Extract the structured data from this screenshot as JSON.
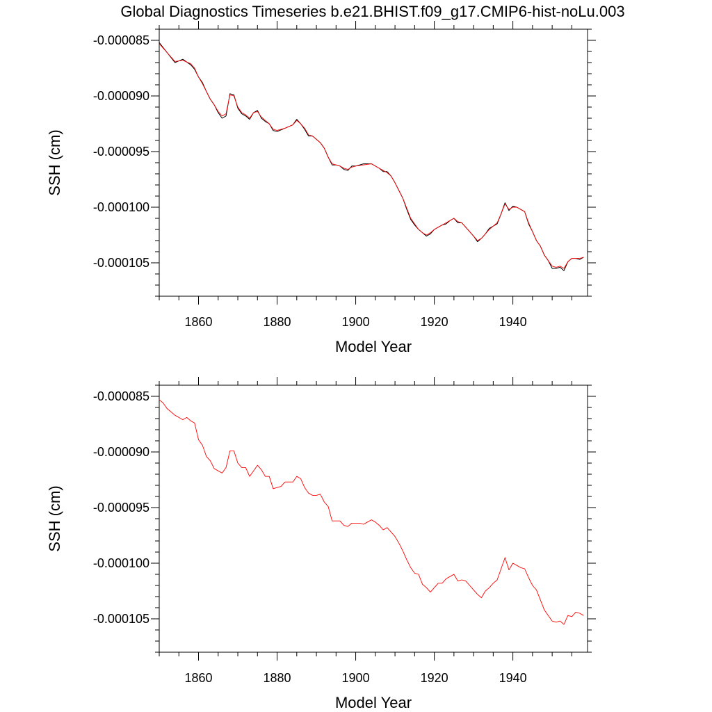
{
  "title": "Global Diagnostics Timeseries b.e21.BHIST.f09_g17.CMIP6-hist-noLu.003",
  "colors": {
    "monthly": "#000000",
    "annual": "#ff0000",
    "axes": "#000000",
    "background": "#ffffff"
  },
  "chart_data": [
    {
      "type": "line",
      "xlabel": "Model Year",
      "ylabel": "SSH (cm)",
      "xlim": [
        1850,
        1959
      ],
      "ylim": [
        -0.000108,
        -8.4e-05
      ],
      "xticks": [
        1860,
        1880,
        1900,
        1920,
        1940
      ],
      "xtick_labels": [
        "1860",
        "1880",
        "1900",
        "1920",
        "1940"
      ],
      "yticks": [
        -8.5e-05,
        -9e-05,
        -9.5e-05,
        -0.0001,
        -0.000105
      ],
      "ytick_labels": [
        "-0.000085",
        "-0.000090",
        "-0.000095",
        "-0.000100",
        "-0.000105"
      ],
      "grid": false,
      "series": [
        {
          "name": "",
          "style": "monthly",
          "color": "#000000",
          "x": [
            1850,
            1852,
            1854,
            1856,
            1858,
            1859,
            1860,
            1861,
            1862,
            1863,
            1864,
            1865,
            1866,
            1867,
            1868,
            1869,
            1870,
            1871,
            1872,
            1873,
            1874,
            1875,
            1876,
            1877,
            1878,
            1879,
            1880,
            1882,
            1884,
            1885,
            1886,
            1887,
            1888,
            1889,
            1890,
            1891,
            1892,
            1893,
            1894,
            1895,
            1896,
            1897,
            1898,
            1899,
            1900,
            1902,
            1904,
            1906,
            1907,
            1908,
            1909,
            1910,
            1911,
            1912,
            1913,
            1914,
            1915,
            1916,
            1917,
            1918,
            1919,
            1920,
            1921,
            1922,
            1923,
            1924,
            1925,
            1926,
            1927,
            1928,
            1929,
            1930,
            1931,
            1932,
            1933,
            1934,
            1935,
            1936,
            1937,
            1938,
            1939,
            1940,
            1941,
            1942,
            1943,
            1944,
            1945,
            1946,
            1947,
            1948,
            1949,
            1950,
            1951,
            1952,
            1953,
            1954,
            1955,
            1956,
            1957,
            1958
          ],
          "y": [
            -8.52e-05,
            -8.61e-05,
            -8.7e-05,
            -8.67e-05,
            -8.72e-05,
            -8.76e-05,
            -8.83e-05,
            -8.88e-05,
            -8.96e-05,
            -9.03e-05,
            -9.08e-05,
            -9.15e-05,
            -9.2e-05,
            -9.18e-05,
            -8.98e-05,
            -8.99e-05,
            -9.11e-05,
            -9.16e-05,
            -9.18e-05,
            -9.21e-05,
            -9.15e-05,
            -9.13e-05,
            -9.2e-05,
            -9.23e-05,
            -9.25e-05,
            -9.31e-05,
            -9.32e-05,
            -9.29e-05,
            -9.26e-05,
            -9.21e-05,
            -9.25e-05,
            -9.3e-05,
            -9.36e-05,
            -9.36e-05,
            -9.39e-05,
            -9.42e-05,
            -9.47e-05,
            -9.55e-05,
            -9.62e-05,
            -9.62e-05,
            -9.63e-05,
            -9.66e-05,
            -9.67e-05,
            -9.63e-05,
            -9.63e-05,
            -9.61e-05,
            -9.61e-05,
            -9.65e-05,
            -9.68e-05,
            -9.68e-05,
            -9.72e-05,
            -9.78e-05,
            -9.85e-05,
            -9.92e-05,
            -0.0001002,
            -0.0001011,
            -0.0001016,
            -0.000102,
            -0.0001023,
            -0.0001026,
            -0.0001024,
            -0.000102,
            -0.0001018,
            -0.0001016,
            -0.0001015,
            -0.0001012,
            -0.000101,
            -0.0001014,
            -0.0001014,
            -0.0001018,
            -0.0001022,
            -0.0001026,
            -0.0001031,
            -0.0001028,
            -0.0001024,
            -0.0001019,
            -0.0001017,
            -0.0001015,
            -0.0001006,
            -9.96e-05,
            -0.0001003,
            -9.99e-05,
            -0.0001,
            -0.0001002,
            -0.0001004,
            -0.0001015,
            -0.0001022,
            -0.000103,
            -0.0001035,
            -0.0001043,
            -0.0001048,
            -0.0001055,
            -0.0001055,
            -0.0001054,
            -0.0001057,
            -0.0001049,
            -0.0001046,
            -0.0001046,
            -0.0001047,
            -0.0001045
          ]
        },
        {
          "name": "",
          "style": "annual",
          "color": "#ff0000",
          "x": [
            1850,
            1852,
            1854,
            1856,
            1858,
            1859,
            1860,
            1861,
            1862,
            1863,
            1864,
            1865,
            1866,
            1867,
            1868,
            1869,
            1870,
            1871,
            1872,
            1873,
            1874,
            1875,
            1876,
            1877,
            1878,
            1879,
            1880,
            1882,
            1884,
            1885,
            1886,
            1887,
            1888,
            1889,
            1890,
            1891,
            1892,
            1893,
            1894,
            1895,
            1896,
            1897,
            1898,
            1899,
            1900,
            1902,
            1904,
            1906,
            1907,
            1908,
            1909,
            1910,
            1911,
            1912,
            1913,
            1914,
            1915,
            1916,
            1917,
            1918,
            1919,
            1920,
            1921,
            1922,
            1923,
            1924,
            1925,
            1926,
            1927,
            1928,
            1929,
            1930,
            1931,
            1932,
            1933,
            1934,
            1935,
            1936,
            1937,
            1938,
            1939,
            1940,
            1941,
            1942,
            1943,
            1944,
            1945,
            1946,
            1947,
            1948,
            1949,
            1950,
            1951,
            1952,
            1953,
            1954,
            1955,
            1956,
            1957,
            1958
          ],
          "y": [
            -8.53e-05,
            -8.61e-05,
            -8.69e-05,
            -8.68e-05,
            -8.71e-05,
            -8.75e-05,
            -8.83e-05,
            -8.89e-05,
            -8.96e-05,
            -9.03e-05,
            -9.08e-05,
            -9.14e-05,
            -9.18e-05,
            -9.16e-05,
            -8.99e-05,
            -9e-05,
            -9.1e-05,
            -9.15e-05,
            -9.17e-05,
            -9.2e-05,
            -9.15e-05,
            -9.14e-05,
            -9.19e-05,
            -9.22e-05,
            -9.25e-05,
            -9.3e-05,
            -9.31e-05,
            -9.29e-05,
            -9.26e-05,
            -9.22e-05,
            -9.25e-05,
            -9.29e-05,
            -9.35e-05,
            -9.36e-05,
            -9.39e-05,
            -9.42e-05,
            -9.47e-05,
            -9.55e-05,
            -9.61e-05,
            -9.62e-05,
            -9.63e-05,
            -9.65e-05,
            -9.66e-05,
            -9.64e-05,
            -9.63e-05,
            -9.62e-05,
            -9.61e-05,
            -9.65e-05,
            -9.67e-05,
            -9.69e-05,
            -9.72e-05,
            -9.78e-05,
            -9.85e-05,
            -9.92e-05,
            -0.0001001,
            -0.000101,
            -0.0001015,
            -0.000102,
            -0.0001023,
            -0.0001025,
            -0.0001023,
            -0.000102,
            -0.0001018,
            -0.0001016,
            -0.0001014,
            -0.0001012,
            -0.000101,
            -0.0001013,
            -0.0001014,
            -0.0001018,
            -0.0001022,
            -0.0001026,
            -0.000103,
            -0.0001028,
            -0.0001024,
            -0.000102,
            -0.0001017,
            -0.0001014,
            -0.0001006,
            -9.97e-05,
            -0.0001002,
            -0.0001,
            -0.0001,
            -0.0001002,
            -0.0001004,
            -0.0001014,
            -0.0001022,
            -0.000103,
            -0.0001035,
            -0.0001043,
            -0.0001048,
            -0.0001053,
            -0.0001054,
            -0.0001053,
            -0.0001055,
            -0.0001049,
            -0.0001046,
            -0.0001046,
            -0.0001046,
            -0.0001045
          ]
        }
      ]
    },
    {
      "type": "line",
      "xlabel": "Model Year",
      "ylabel": "SSH (cm)",
      "xlim": [
        1850,
        1959
      ],
      "ylim": [
        -0.000108,
        -8.4e-05
      ],
      "xticks": [
        1860,
        1880,
        1900,
        1920,
        1940
      ],
      "xtick_labels": [
        "1860",
        "1880",
        "1900",
        "1920",
        "1940"
      ],
      "yticks": [
        -8.5e-05,
        -9e-05,
        -9.5e-05,
        -0.0001,
        -0.000105
      ],
      "ytick_labels": [
        "-0.000085",
        "-0.000090",
        "-0.000095",
        "-0.000100",
        "-0.000105"
      ],
      "grid": false,
      "series": [
        {
          "name": "",
          "style": "annual",
          "color": "#ff0000",
          "x": [
            1850,
            1851,
            1852,
            1853,
            1854,
            1855,
            1856,
            1857,
            1858,
            1859,
            1860,
            1861,
            1862,
            1863,
            1864,
            1865,
            1866,
            1867,
            1868,
            1869,
            1870,
            1871,
            1872,
            1873,
            1874,
            1875,
            1876,
            1877,
            1878,
            1879,
            1880,
            1881,
            1882,
            1883,
            1884,
            1885,
            1886,
            1887,
            1888,
            1889,
            1890,
            1891,
            1892,
            1893,
            1894,
            1895,
            1896,
            1897,
            1898,
            1899,
            1900,
            1901,
            1902,
            1903,
            1904,
            1905,
            1906,
            1907,
            1908,
            1909,
            1910,
            1911,
            1912,
            1913,
            1914,
            1915,
            1916,
            1917,
            1918,
            1919,
            1920,
            1921,
            1922,
            1923,
            1924,
            1925,
            1926,
            1927,
            1928,
            1929,
            1930,
            1931,
            1932,
            1933,
            1934,
            1935,
            1936,
            1937,
            1938,
            1939,
            1940,
            1941,
            1942,
            1943,
            1944,
            1945,
            1946,
            1947,
            1948,
            1949,
            1950,
            1951,
            1952,
            1953,
            1954,
            1955,
            1956,
            1957,
            1958
          ],
          "y": [
            -8.53e-05,
            -8.56e-05,
            -8.61e-05,
            -8.64e-05,
            -8.67e-05,
            -8.69e-05,
            -8.71e-05,
            -8.69e-05,
            -8.72e-05,
            -8.74e-05,
            -8.89e-05,
            -8.94e-05,
            -9.04e-05,
            -9.08e-05,
            -9.15e-05,
            -9.17e-05,
            -9.19e-05,
            -9.14e-05,
            -8.99e-05,
            -8.99e-05,
            -9.1e-05,
            -9.14e-05,
            -9.14e-05,
            -9.22e-05,
            -9.17e-05,
            -9.12e-05,
            -9.16e-05,
            -9.22e-05,
            -9.22e-05,
            -9.33e-05,
            -9.32e-05,
            -9.31e-05,
            -9.27e-05,
            -9.27e-05,
            -9.27e-05,
            -9.22e-05,
            -9.24e-05,
            -9.32e-05,
            -9.37e-05,
            -9.39e-05,
            -9.39e-05,
            -9.38e-05,
            -9.45e-05,
            -9.49e-05,
            -9.62e-05,
            -9.62e-05,
            -9.62e-05,
            -9.66e-05,
            -9.67e-05,
            -9.64e-05,
            -9.64e-05,
            -9.64e-05,
            -9.65e-05,
            -9.63e-05,
            -9.61e-05,
            -9.63e-05,
            -9.66e-05,
            -9.7e-05,
            -9.68e-05,
            -9.72e-05,
            -9.76e-05,
            -9.82e-05,
            -9.89e-05,
            -9.97e-05,
            -0.0001004,
            -0.0001009,
            -0.000101,
            -0.0001019,
            -0.0001022,
            -0.0001026,
            -0.0001022,
            -0.0001018,
            -0.0001018,
            -0.0001014,
            -0.0001012,
            -0.000101,
            -0.0001016,
            -0.0001015,
            -0.0001016,
            -0.000102,
            -0.0001024,
            -0.0001028,
            -0.0001031,
            -0.0001025,
            -0.0001022,
            -0.0001018,
            -0.0001015,
            -0.0001005,
            -9.95e-05,
            -0.0001006,
            -0.0001,
            -0.0001002,
            -0.0001004,
            -0.0001005,
            -0.0001013,
            -0.000102,
            -0.0001024,
            -0.0001033,
            -0.0001042,
            -0.0001047,
            -0.0001052,
            -0.0001053,
            -0.0001052,
            -0.0001055,
            -0.0001047,
            -0.0001048,
            -0.0001044,
            -0.0001045,
            -0.0001047
          ]
        }
      ]
    }
  ]
}
